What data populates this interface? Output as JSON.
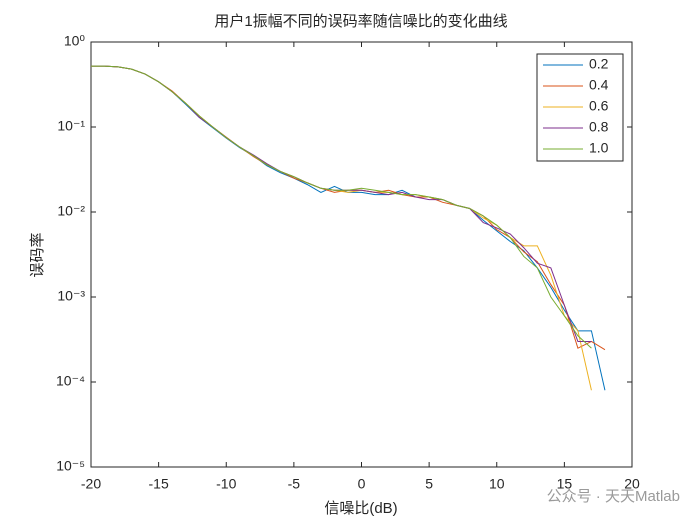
{
  "chart_data": {
    "type": "line",
    "title": "用户1振幅不同的误码率随信噪比的变化曲线",
    "xlabel": "信噪比(dB)",
    "ylabel": "误码率",
    "watermark": "公众号 · 天天Matlab",
    "x": [
      -20,
      -19,
      -18,
      -17,
      -16,
      -15,
      -14,
      -13,
      -12,
      -11,
      -10,
      -9,
      -8,
      -7,
      -6,
      -5,
      -4,
      -3,
      -2,
      -1,
      0,
      1,
      2,
      3,
      4,
      5,
      6,
      7,
      8,
      9,
      10,
      11,
      12,
      13,
      14,
      15,
      16,
      17,
      18
    ],
    "series": [
      {
        "name": "0.2",
        "color": "#0072BD",
        "values": [
          0.52,
          0.52,
          0.51,
          0.48,
          0.42,
          0.34,
          0.26,
          0.185,
          0.13,
          0.098,
          0.074,
          0.057,
          0.046,
          0.035,
          0.029,
          0.025,
          0.021,
          0.017,
          0.02,
          0.017,
          0.017,
          0.016,
          0.016,
          0.018,
          0.015,
          0.015,
          0.014,
          0.012,
          0.011,
          0.008,
          0.006,
          0.0045,
          0.0035,
          0.0022,
          0.0013,
          0.0007,
          0.0004,
          0.0004,
          8e-05
        ]
      },
      {
        "name": "0.4",
        "color": "#D95319",
        "values": [
          0.52,
          0.52,
          0.51,
          0.48,
          0.42,
          0.34,
          0.265,
          0.19,
          0.135,
          0.1,
          0.076,
          0.058,
          0.045,
          0.036,
          0.03,
          0.025,
          0.022,
          0.019,
          0.017,
          0.018,
          0.018,
          0.017,
          0.018,
          0.016,
          0.015,
          0.015,
          0.013,
          0.012,
          0.011,
          0.009,
          0.0062,
          0.005,
          0.0034,
          0.0026,
          0.0014,
          0.0008,
          0.00025,
          0.0003,
          0.00024
        ]
      },
      {
        "name": "0.6",
        "color": "#EDB120",
        "values": [
          0.52,
          0.52,
          0.51,
          0.48,
          0.42,
          0.34,
          0.26,
          0.19,
          0.135,
          0.1,
          0.075,
          0.058,
          0.046,
          0.036,
          0.03,
          0.026,
          0.022,
          0.019,
          0.018,
          0.017,
          0.018,
          0.017,
          0.017,
          0.016,
          0.016,
          0.015,
          0.014,
          0.012,
          0.011,
          0.0085,
          0.007,
          0.005,
          0.004,
          0.004,
          0.0018,
          0.0006,
          0.0004,
          8e-05,
          null
        ]
      },
      {
        "name": "0.8",
        "color": "#7E2F8E",
        "values": [
          0.52,
          0.52,
          0.51,
          0.48,
          0.42,
          0.34,
          0.26,
          0.19,
          0.13,
          0.1,
          0.075,
          0.058,
          0.047,
          0.037,
          0.03,
          0.026,
          0.022,
          0.019,
          0.018,
          0.018,
          0.018,
          0.017,
          0.016,
          0.017,
          0.015,
          0.014,
          0.014,
          0.012,
          0.011,
          0.0075,
          0.0065,
          0.0055,
          0.0038,
          0.0025,
          0.0022,
          0.0008,
          0.0003,
          0.0003,
          null
        ]
      },
      {
        "name": "1.0",
        "color": "#77AC30",
        "values": [
          0.52,
          0.52,
          0.51,
          0.48,
          0.42,
          0.34,
          0.26,
          0.19,
          0.135,
          0.1,
          0.075,
          0.058,
          0.046,
          0.036,
          0.03,
          0.026,
          0.022,
          0.019,
          0.018,
          0.018,
          0.019,
          0.018,
          0.017,
          0.016,
          0.016,
          0.015,
          0.014,
          0.012,
          0.011,
          0.009,
          0.007,
          0.005,
          0.003,
          0.0022,
          0.001,
          0.0006,
          0.00035,
          0.00025,
          null
        ]
      }
    ],
    "xlim": [
      -20,
      20
    ],
    "xticks": [
      -20,
      -15,
      -10,
      -5,
      0,
      5,
      10,
      15,
      20
    ],
    "ylim": [
      1e-05,
      1
    ],
    "log_y": true,
    "yticks": [
      {
        "value": 1e-05,
        "label": "10⁻⁵"
      },
      {
        "value": 0.0001,
        "label": "10⁻⁴"
      },
      {
        "value": 0.001,
        "label": "10⁻³"
      },
      {
        "value": 0.01,
        "label": "10⁻²"
      },
      {
        "value": 0.1,
        "label": "10⁻¹"
      },
      {
        "value": 1,
        "label": "10⁰"
      }
    ],
    "grid": false,
    "legend": "top-right"
  }
}
